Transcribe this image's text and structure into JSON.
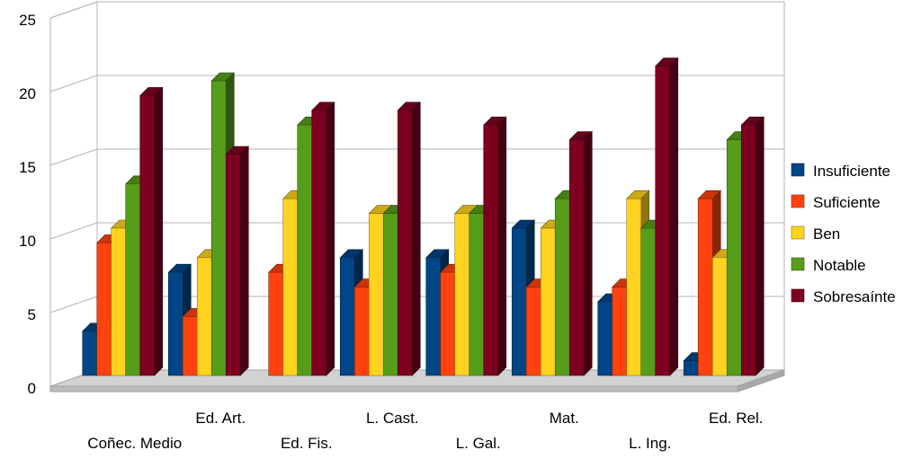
{
  "chart_data": {
    "type": "bar",
    "categories": [
      "Coñec. Medio",
      "Ed. Art.",
      "Ed. Fis.",
      "L. Cast.",
      "L. Gal.",
      "Mat.",
      "L. Ing.",
      "Ed. Rel."
    ],
    "series": [
      {
        "name": "Insuficiente",
        "color": "#004586",
        "values": [
          3,
          7,
          0,
          8,
          8,
          10,
          5,
          1
        ]
      },
      {
        "name": "Suficiente",
        "color": "#ff420e",
        "values": [
          9,
          4,
          7,
          6,
          7,
          6,
          6,
          12
        ]
      },
      {
        "name": "Ben",
        "color": "#ffd320",
        "values": [
          10,
          8,
          12,
          11,
          11,
          10,
          12,
          8
        ]
      },
      {
        "name": "Notable",
        "color": "#579d1c",
        "values": [
          13,
          20,
          17,
          11,
          11,
          12,
          10,
          16
        ]
      },
      {
        "name": "Sobresaínte",
        "color": "#7e0021",
        "values": [
          19,
          15,
          18,
          18,
          17,
          16,
          21,
          17
        ]
      }
    ],
    "ylim": [
      0,
      25
    ],
    "yticks": [
      0,
      5,
      10,
      15,
      20,
      25
    ],
    "grid": true,
    "legend_position": "right",
    "style": "3d-clustered-bar"
  }
}
